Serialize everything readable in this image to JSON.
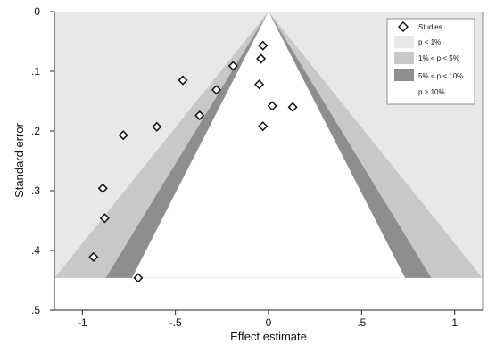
{
  "chart_data": {
    "type": "scatter",
    "subtype": "contour-enhanced funnel plot",
    "xlabel": "Effect estimate",
    "ylabel": "Standard error",
    "xlim": [
      -1.15,
      1.15
    ],
    "ylim": [
      0.5,
      0
    ],
    "y_axis_inverted": true,
    "xticks": [
      -1,
      -0.5,
      0,
      0.5,
      1
    ],
    "xtick_labels": [
      "-1",
      "-.5",
      "0",
      ".5",
      "1"
    ],
    "yticks": [
      0,
      0.1,
      0.2,
      0.3,
      0.4,
      0.5
    ],
    "ytick_labels": [
      "0",
      ".1",
      ".2",
      ".3",
      ".4",
      ".5"
    ],
    "contours": [
      {
        "label": "p < 1%",
        "color": "#e8e8e8"
      },
      {
        "label": "1% < p < 5%",
        "color": "#c8c8c8"
      },
      {
        "label": "5% < p < 10%",
        "color": "#8e8e8e"
      },
      {
        "label": "p > 10%",
        "color": "#ffffff"
      }
    ],
    "contour_max_se": 0.446,
    "legend": {
      "placement": "top-right",
      "studies_label": "Studies",
      "marker": "hollow diamond"
    },
    "series": [
      {
        "name": "Studies",
        "x": [
          -0.03,
          -0.04,
          -0.19,
          -0.46,
          -0.28,
          -0.05,
          -0.37,
          0.02,
          0.13,
          -0.6,
          -0.78,
          -0.03,
          -0.89,
          -0.88,
          -0.94,
          -0.7
        ],
        "y": [
          0.057,
          0.079,
          0.091,
          0.115,
          0.131,
          0.122,
          0.174,
          0.158,
          0.16,
          0.193,
          0.207,
          0.192,
          0.296,
          0.346,
          0.411,
          0.446
        ]
      }
    ]
  }
}
